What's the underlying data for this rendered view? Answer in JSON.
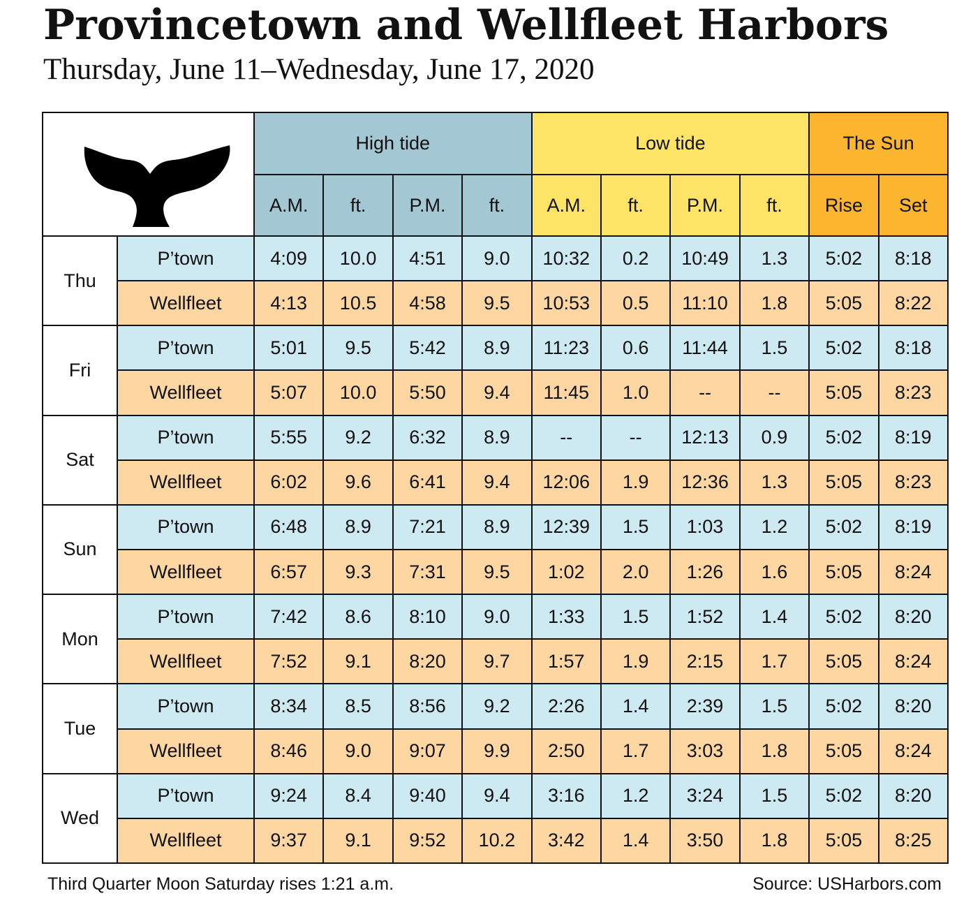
{
  "title": "Provincetown and Wellfleet Harbors",
  "subtitle": "Thursday, June 11–Wednesday, June 17, 2020",
  "logo_icon": "whale-tail-icon",
  "colors": {
    "high_header": "#a3c8d3",
    "low_header": "#fde466",
    "sun_header": "#fbb52f",
    "ptown_row": "#cde9f1",
    "wellfleet_row": "#fdd6a1"
  },
  "headers": {
    "high_tide": "High tide",
    "low_tide": "Low tide",
    "the_sun": "The Sun",
    "am": "A.M.",
    "ft": "ft.",
    "pm": "P.M.",
    "rise": "Rise",
    "set": "Set"
  },
  "days": [
    {
      "day": "Thu",
      "rows": [
        {
          "location": "P’town",
          "values": [
            "4:09",
            "10.0",
            "4:51",
            "9.0",
            "10:32",
            "0.2",
            "10:49",
            "1.3",
            "5:02",
            "8:18"
          ]
        },
        {
          "location": "Wellfleet",
          "values": [
            "4:13",
            "10.5",
            "4:58",
            "9.5",
            "10:53",
            "0.5",
            "11:10",
            "1.8",
            "5:05",
            "8:22"
          ]
        }
      ]
    },
    {
      "day": "Fri",
      "rows": [
        {
          "location": "P’town",
          "values": [
            "5:01",
            "9.5",
            "5:42",
            "8.9",
            "11:23",
            "0.6",
            "11:44",
            "1.5",
            "5:02",
            "8:18"
          ]
        },
        {
          "location": "Wellfleet",
          "values": [
            "5:07",
            "10.0",
            "5:50",
            "9.4",
            "11:45",
            "1.0",
            "--",
            "--",
            "5:05",
            "8:23"
          ]
        }
      ]
    },
    {
      "day": "Sat",
      "rows": [
        {
          "location": "P’town",
          "values": [
            "5:55",
            "9.2",
            "6:32",
            "8.9",
            "--",
            "--",
            "12:13",
            "0.9",
            "5:02",
            "8:19"
          ]
        },
        {
          "location": "Wellfleet",
          "values": [
            "6:02",
            "9.6",
            "6:41",
            "9.4",
            "12:06",
            "1.9",
            "12:36",
            "1.3",
            "5:05",
            "8:23"
          ]
        }
      ]
    },
    {
      "day": "Sun",
      "rows": [
        {
          "location": "P’town",
          "values": [
            "6:48",
            "8.9",
            "7:21",
            "8.9",
            "12:39",
            "1.5",
            "1:03",
            "1.2",
            "5:02",
            "8:19"
          ]
        },
        {
          "location": "Wellfleet",
          "values": [
            "6:57",
            "9.3",
            "7:31",
            "9.5",
            "1:02",
            "2.0",
            "1:26",
            "1.6",
            "5:05",
            "8:24"
          ]
        }
      ]
    },
    {
      "day": "Mon",
      "rows": [
        {
          "location": "P’town",
          "values": [
            "7:42",
            "8.6",
            "8:10",
            "9.0",
            "1:33",
            "1.5",
            "1:52",
            "1.4",
            "5:02",
            "8:20"
          ]
        },
        {
          "location": "Wellfleet",
          "values": [
            "7:52",
            "9.1",
            "8:20",
            "9.7",
            "1:57",
            "1.9",
            "2:15",
            "1.7",
            "5:05",
            "8:24"
          ]
        }
      ]
    },
    {
      "day": "Tue",
      "rows": [
        {
          "location": "P’town",
          "values": [
            "8:34",
            "8.5",
            "8:56",
            "9.2",
            "2:26",
            "1.4",
            "2:39",
            "1.5",
            "5:02",
            "8:20"
          ]
        },
        {
          "location": "Wellfleet",
          "values": [
            "8:46",
            "9.0",
            "9:07",
            "9.9",
            "2:50",
            "1.7",
            "3:03",
            "1.8",
            "5:05",
            "8:24"
          ]
        }
      ]
    },
    {
      "day": "Wed",
      "rows": [
        {
          "location": "P’town",
          "values": [
            "9:24",
            "8.4",
            "9:40",
            "9.4",
            "3:16",
            "1.2",
            "3:24",
            "1.5",
            "5:02",
            "8:20"
          ]
        },
        {
          "location": "Wellfleet",
          "values": [
            "9:37",
            "9.1",
            "9:52",
            "10.2",
            "3:42",
            "1.4",
            "3:50",
            "1.8",
            "5:05",
            "8:25"
          ]
        }
      ]
    }
  ],
  "footer": {
    "moon": "Third Quarter Moon Saturday rises 1:21 a.m.",
    "source": "Source: USHarbors.com"
  }
}
